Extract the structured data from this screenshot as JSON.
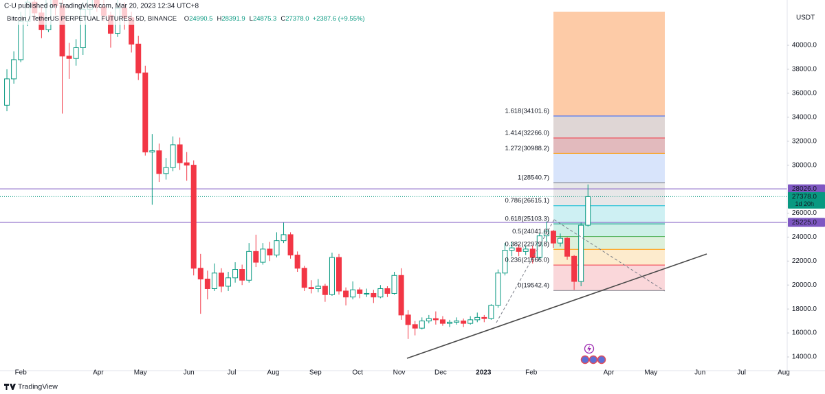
{
  "header": {
    "published": "C-U published on TradingView.com, Mar 20, 2023 12:34 UTC+8",
    "symbol": "Bitcoin / TetherUS PERPETUAL FUTURES, 5D, BINANCE",
    "ohlc": [
      {
        "key": "O",
        "value": "24990.5"
      },
      {
        "key": "H",
        "value": "28391.9"
      },
      {
        "key": "L",
        "value": "24875.3"
      },
      {
        "key": "C",
        "value": "27378.0"
      }
    ],
    "change": "+2387.6 (+9.55%)"
  },
  "footer": {
    "brand": "TradingView"
  },
  "chart_data": {
    "type": "candlestick",
    "currency": "USDT",
    "up_color": "#089981",
    "down_color": "#f23645",
    "xlim": [
      -1,
      112.8
    ],
    "xticks": [
      {
        "value": 2.0,
        "label": "Feb"
      },
      {
        "value": 13.2,
        "label": "Apr"
      },
      {
        "value": 19.3,
        "label": "May"
      },
      {
        "value": 26.3,
        "label": "Jun"
      },
      {
        "value": 32.5,
        "label": "Jul"
      },
      {
        "value": 38.5,
        "label": "Aug"
      },
      {
        "value": 44.6,
        "label": "Sep"
      },
      {
        "value": 50.7,
        "label": "Oct"
      },
      {
        "value": 56.7,
        "label": "Nov"
      },
      {
        "value": 62.7,
        "label": "Dec"
      },
      {
        "value": 68.9,
        "label": "2023"
      },
      {
        "value": 75.8,
        "label": "Feb"
      },
      {
        "value": 87.0,
        "label": "Apr"
      },
      {
        "value": 93.1,
        "label": "May"
      },
      {
        "value": 100.2,
        "label": "Jun"
      },
      {
        "value": 106.2,
        "label": "Jul"
      },
      {
        "value": 112.3,
        "label": "Aug"
      }
    ],
    "ylim": [
      12855,
      43780
    ],
    "yticks": [
      {
        "value": 14000,
        "label": "14000.0"
      },
      {
        "value": 16000,
        "label": "16000.0"
      },
      {
        "value": 18000,
        "label": "18000.0"
      },
      {
        "value": 20000,
        "label": "20000.0"
      },
      {
        "value": 22000,
        "label": "22000.0"
      },
      {
        "value": 24000,
        "label": "24000.0"
      },
      {
        "value": 26000,
        "label": "26000.0"
      },
      {
        "value": 30000,
        "label": "30000.0"
      },
      {
        "value": 32000,
        "label": "32000.0"
      },
      {
        "value": 34000,
        "label": "34000.0"
      },
      {
        "value": 36000,
        "label": "36000.0"
      },
      {
        "value": 38000,
        "label": "38000.0"
      },
      {
        "value": 40000,
        "label": "40000.0"
      }
    ],
    "grid": false,
    "series": {
      "open": [
        35000,
        37200,
        38800,
        42000,
        43600,
        42700,
        41300,
        44300,
        43300,
        39100,
        38900,
        39800,
        43000,
        44600,
        43200,
        42500,
        41000,
        43100,
        42300,
        40100,
        37700,
        31100,
        31200,
        29300,
        29800,
        31700,
        30200,
        30000,
        21400,
        20500,
        19700,
        21000,
        19900,
        20600,
        21300,
        20400,
        22800,
        21900,
        23000,
        22500,
        23700,
        24200,
        22500,
        21400,
        19800,
        19700,
        19900,
        19200,
        22300,
        19500,
        19000,
        19600,
        19300,
        19300,
        19000,
        19700,
        19300,
        20800,
        17500,
        16700,
        16400,
        17000,
        17200,
        17100,
        16800,
        16900,
        17000,
        16800,
        17100,
        17300,
        17200,
        18300,
        21000,
        22900,
        23100,
        22800,
        23000,
        22300,
        24100,
        24500,
        23500,
        23900,
        22400,
        20300,
        24990.5
      ],
      "high": [
        38000,
        39500,
        42800,
        44400,
        44200,
        43200,
        45000,
        44800,
        43800,
        40200,
        40500,
        43600,
        45500,
        45200,
        43800,
        42800,
        43800,
        43600,
        42800,
        40800,
        38300,
        32600,
        31800,
        30600,
        32400,
        32300,
        31100,
        30400,
        22600,
        21200,
        21800,
        21400,
        21100,
        21900,
        21700,
        23500,
        24200,
        23500,
        23600,
        24400,
        25200,
        24400,
        22800,
        21600,
        20400,
        20500,
        20100,
        22700,
        22600,
        19800,
        20300,
        19800,
        19700,
        19600,
        20000,
        19900,
        21100,
        21400,
        17900,
        17000,
        17300,
        17500,
        17800,
        17400,
        17100,
        17300,
        17200,
        17400,
        17700,
        17500,
        18400,
        21300,
        23500,
        23600,
        23400,
        23300,
        23300,
        24300,
        25300,
        24600,
        24300,
        24000,
        22500,
        25200,
        28391.9
      ],
      "low": [
        34500,
        36800,
        38600,
        41600,
        42000,
        40600,
        41100,
        42500,
        34300,
        37200,
        38300,
        39200,
        42500,
        42800,
        42000,
        39800,
        40700,
        41300,
        39400,
        37100,
        30800,
        26700,
        28600,
        28800,
        29500,
        29600,
        28700,
        20800,
        17600,
        18800,
        19500,
        19400,
        19500,
        20200,
        20000,
        20200,
        21500,
        21700,
        22000,
        22300,
        23500,
        22200,
        21100,
        19500,
        19300,
        19400,
        18600,
        19100,
        19200,
        18300,
        18800,
        18900,
        19000,
        18500,
        18900,
        19000,
        19200,
        17100,
        15500,
        15800,
        16300,
        16800,
        16700,
        16600,
        16500,
        16700,
        16500,
        16700,
        16900,
        16900,
        17100,
        18100,
        20800,
        22400,
        22400,
        22500,
        21800,
        22100,
        23600,
        23100,
        23200,
        22100,
        19600,
        19900,
        24875.3
      ],
      "close": [
        37200,
        38800,
        42000,
        43600,
        42700,
        41300,
        44300,
        43300,
        39100,
        38900,
        39800,
        43000,
        44600,
        43200,
        42500,
        41000,
        43100,
        42300,
        40100,
        37700,
        31100,
        31200,
        29300,
        29800,
        31700,
        30200,
        30000,
        21400,
        20500,
        19700,
        21000,
        19900,
        20600,
        21300,
        20400,
        22800,
        21900,
        23000,
        22500,
        23700,
        24200,
        22500,
        21400,
        19800,
        19700,
        19900,
        19200,
        22300,
        19500,
        19000,
        19600,
        19300,
        19300,
        19000,
        19700,
        19300,
        20800,
        17500,
        16700,
        16400,
        17000,
        17200,
        17100,
        16800,
        16900,
        17000,
        16800,
        17100,
        17300,
        17200,
        18300,
        21000,
        22900,
        23100,
        22800,
        23000,
        22300,
        24100,
        24500,
        23500,
        23900,
        22400,
        20300,
        24990.5,
        27378
      ]
    },
    "fib_levels": [
      {
        "label": "0(19542.4)",
        "value": 19542.4,
        "color": "#787b86",
        "fill": "#f9d3d6"
      },
      {
        "label": "0.236(21666.0)",
        "value": 21666.0,
        "color": "#f23645",
        "fill": "#f9d3d6"
      },
      {
        "label": "0.382(22979.8)",
        "value": 22979.8,
        "color": "#ff9800",
        "fill": "#fde9c8"
      },
      {
        "label": "0.5(24041.6)",
        "value": 24041.6,
        "color": "#4caf50",
        "fill": "#d9eed7"
      },
      {
        "label": "0.618(25103.3)",
        "value": 25103.3,
        "color": "#089981",
        "fill": "#c8eee4"
      },
      {
        "label": "0.786(26615.1)",
        "value": 26615.1,
        "color": "#00bcd4",
        "fill": "#c9eef2"
      },
      {
        "label": "1(28540.7)",
        "value": 28540.7,
        "color": "#787b86",
        "fill": "#e4e4e6"
      },
      {
        "label": "1.272(30988.2)",
        "value": 30988.2,
        "color": "#ff9800",
        "fill": "#d4e1fb"
      },
      {
        "label": "1.414(32266.0)",
        "value": 32266.0,
        "color": "#f23645",
        "fill": "#dfb3b6"
      },
      {
        "label": "1.618(34101.6)",
        "value": 34101.6,
        "color": "#2962ff",
        "fill": "#dcd2d0"
      }
    ],
    "fib_top_fill": "#fdcba7",
    "price_lines": [
      {
        "value": 28026,
        "label": "28026.0",
        "color": "#7e57c2"
      },
      {
        "value": 25225,
        "label": "25225.0",
        "color": "#7e57c2"
      }
    ],
    "last_price": {
      "value": 27378,
      "label": "27378.0",
      "countdown": "1d 20h"
    }
  }
}
